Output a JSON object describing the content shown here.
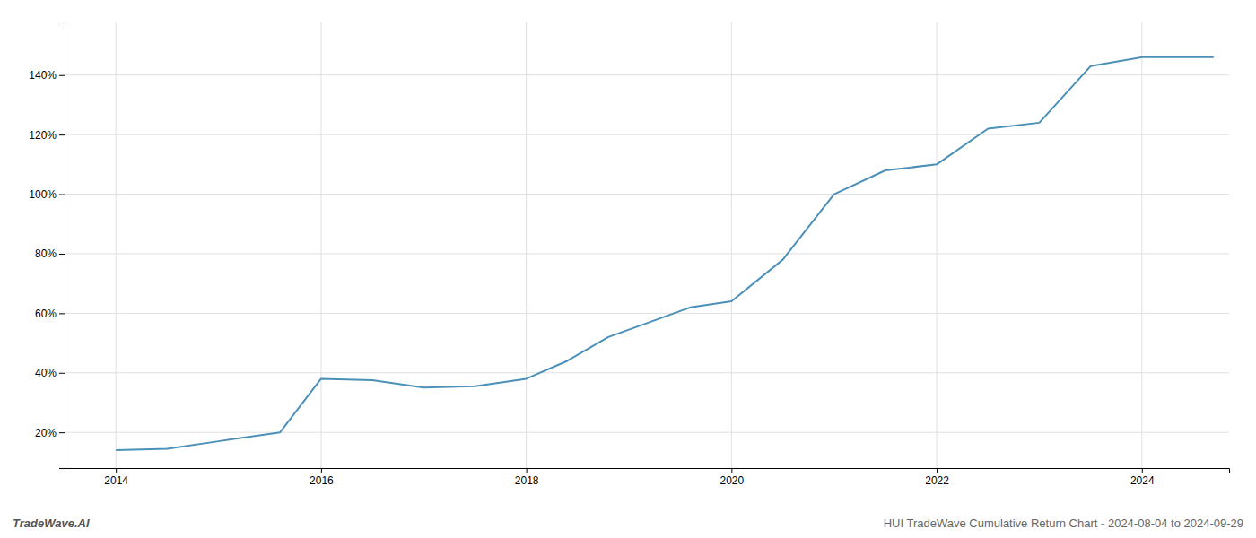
{
  "chart_data": {
    "type": "line",
    "title": "HUI TradeWave Cumulative Return Chart - 2024-08-04 to 2024-09-29",
    "annotations": [
      {
        "text": "TradeWave.AI"
      }
    ],
    "x": [
      2014.0,
      2014.5,
      2015.0,
      2015.6,
      2016.0,
      2016.5,
      2017.0,
      2017.5,
      2018.0,
      2018.4,
      2018.8,
      2019.2,
      2019.6,
      2020.0,
      2020.5,
      2021.0,
      2021.5,
      2022.0,
      2022.5,
      2023.0,
      2023.5,
      2024.0,
      2024.7
    ],
    "values": [
      14,
      14.5,
      17,
      20,
      38,
      37.5,
      35,
      35.5,
      38,
      44,
      52,
      57,
      62,
      64,
      78,
      100,
      108,
      110,
      122,
      124,
      143,
      146,
      146
    ],
    "color": "#4a90b8",
    "xlim": [
      2013.5,
      2024.85
    ],
    "ylim": [
      8,
      158
    ],
    "xticks": [
      2014,
      2016,
      2018,
      2020,
      2022,
      2024
    ],
    "yticks": [
      {
        "value": 20,
        "label": "20%"
      },
      {
        "value": 40,
        "label": "40%"
      },
      {
        "value": 60,
        "label": "60%"
      },
      {
        "value": 80,
        "label": "80%"
      },
      {
        "value": 100,
        "label": "100%"
      },
      {
        "value": 120,
        "label": "120%"
      },
      {
        "value": 140,
        "label": "140%"
      }
    ],
    "grid": true
  }
}
